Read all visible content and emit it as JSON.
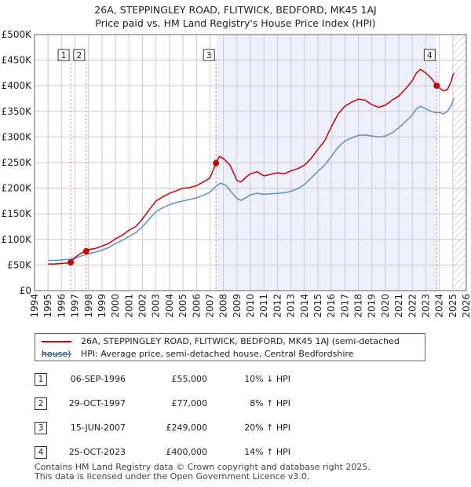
{
  "title_line1": "26A, STEPPINGLEY ROAD, FLITWICK, BEDFORD, MK45 1AJ",
  "title_line2": "Price paid vs. HM Land Registry's House Price Index (HPI)",
  "colors": {
    "price": "#cc0000",
    "hpi": "#5b8fc7",
    "shade": "#eef0fb",
    "grid": "#cccccc"
  },
  "chart_data": {
    "type": "line",
    "title": "26A, STEPPINGLEY ROAD, FLITWICK, BEDFORD, MK45 1AJ — Price paid vs. HM Land Registry's House Price Index (HPI)",
    "xlim": [
      1994,
      2026
    ],
    "ylim": [
      0,
      500000
    ],
    "x_ticks": [
      "1994",
      "1995",
      "1996",
      "1997",
      "1998",
      "1999",
      "2000",
      "2001",
      "2002",
      "2003",
      "2004",
      "2005",
      "2006",
      "2007",
      "2008",
      "2009",
      "2010",
      "2011",
      "2012",
      "2013",
      "2014",
      "2015",
      "2016",
      "2017",
      "2018",
      "2019",
      "2020",
      "2021",
      "2022",
      "2023",
      "2024",
      "2025",
      "2026"
    ],
    "y_ticks": [
      {
        "value": 0,
        "label": "£0"
      },
      {
        "value": 50000,
        "label": "£50K"
      },
      {
        "value": 100000,
        "label": "£100K"
      },
      {
        "value": 150000,
        "label": "£150K"
      },
      {
        "value": 200000,
        "label": "£200K"
      },
      {
        "value": 250000,
        "label": "£250K"
      },
      {
        "value": 300000,
        "label": "£300K"
      },
      {
        "value": 350000,
        "label": "£350K"
      },
      {
        "value": 400000,
        "label": "£400K"
      },
      {
        "value": 450000,
        "label": "£450K"
      },
      {
        "value": 500000,
        "label": "£500K"
      }
    ],
    "shaded_region": [
      2007.45,
      2023.81
    ],
    "hatched_from": 2025.0,
    "series": [
      {
        "name": "26A, STEPPINGLEY ROAD, FLITWICK, BEDFORD, MK45 1AJ (semi-detached house)",
        "color": "#cc0000",
        "x": [
          1995,
          1995.5,
          1996,
          1996.5,
          1996.68,
          1997,
          1997.5,
          1997.83,
          1998,
          1998.5,
          1999,
          1999.5,
          2000,
          2000.5,
          2001,
          2001.5,
          2002,
          2002.5,
          2003,
          2003.5,
          2004,
          2004.5,
          2005,
          2005.5,
          2006,
          2006.5,
          2007,
          2007.45,
          2007.7,
          2008,
          2008.5,
          2009,
          2009.3,
          2009.7,
          2010,
          2010.5,
          2011,
          2011.5,
          2012,
          2012.5,
          2013,
          2013.5,
          2014,
          2014.5,
          2015,
          2015.5,
          2016,
          2016.5,
          2017,
          2017.5,
          2018,
          2018.5,
          2019,
          2019.5,
          2020,
          2020.5,
          2021,
          2021.5,
          2022,
          2022.3,
          2022.6,
          2023,
          2023.4,
          2023.81,
          2024,
          2024.3,
          2024.6,
          2024.9,
          2025.0,
          2025.1
        ],
        "values": [
          52000,
          52000,
          53000,
          54000,
          55000,
          65000,
          74000,
          77000,
          80000,
          82000,
          87000,
          92000,
          101000,
          108000,
          118000,
          125000,
          140000,
          158000,
          175000,
          183000,
          190000,
          195000,
          200000,
          201000,
          205000,
          212000,
          220000,
          249000,
          262000,
          258000,
          245000,
          215000,
          212000,
          222000,
          228000,
          232000,
          224000,
          227000,
          230000,
          228000,
          234000,
          238000,
          245000,
          258000,
          276000,
          292000,
          320000,
          345000,
          360000,
          368000,
          374000,
          372000,
          363000,
          358000,
          362000,
          372000,
          380000,
          394000,
          410000,
          425000,
          432000,
          425000,
          415000,
          400000,
          396000,
          390000,
          392000,
          410000,
          420000,
          425000
        ]
      },
      {
        "name": "HPI: Average price, semi-detached house, Central Bedfordshire",
        "color": "#5b8fc7",
        "x": [
          1995,
          1995.5,
          1996,
          1996.5,
          1997,
          1997.5,
          1998,
          1998.5,
          1999,
          1999.5,
          2000,
          2000.5,
          2001,
          2001.5,
          2002,
          2002.5,
          2003,
          2003.5,
          2004,
          2004.5,
          2005,
          2005.5,
          2006,
          2006.5,
          2007,
          2007.5,
          2007.8,
          2008.2,
          2008.6,
          2009,
          2009.3,
          2009.7,
          2010,
          2010.5,
          2011,
          2011.5,
          2012,
          2012.5,
          2013,
          2013.5,
          2014,
          2014.5,
          2015,
          2015.5,
          2016,
          2016.5,
          2017,
          2017.5,
          2018,
          2018.5,
          2019,
          2019.5,
          2020,
          2020.5,
          2021,
          2021.5,
          2022,
          2022.3,
          2022.6,
          2023,
          2023.4,
          2023.8,
          2024,
          2024.3,
          2024.6,
          2024.9,
          2025.0,
          2025.1
        ],
        "values": [
          59000,
          59000,
          60000,
          61000,
          63000,
          68000,
          72000,
          75000,
          79000,
          84000,
          92000,
          98000,
          106000,
          113000,
          125000,
          140000,
          154000,
          162000,
          168000,
          172000,
          175000,
          178000,
          181000,
          186000,
          192000,
          205000,
          210000,
          205000,
          192000,
          180000,
          176000,
          182000,
          187000,
          190000,
          188000,
          189000,
          190000,
          191000,
          194000,
          199000,
          207000,
          220000,
          233000,
          245000,
          262000,
          280000,
          292000,
          298000,
          303000,
          304000,
          302000,
          300000,
          302000,
          308000,
          318000,
          330000,
          343000,
          355000,
          360000,
          355000,
          350000,
          347000,
          348000,
          345000,
          350000,
          362000,
          370000,
          375000
        ]
      }
    ],
    "markers": [
      {
        "label": "1",
        "x": 1996.68,
        "y": 55000
      },
      {
        "label": "2",
        "x": 1997.83,
        "y": 77000
      },
      {
        "label": "3",
        "x": 2007.45,
        "y": 249000
      },
      {
        "label": "4",
        "x": 2023.81,
        "y": 400000
      }
    ]
  },
  "legend": {
    "price_label": "26A, STEPPINGLEY ROAD, FLITWICK, BEDFORD, MK45 1AJ (semi-detached house)",
    "hpi_label": "HPI: Average price, semi-detached house, Central Bedfordshire"
  },
  "sales": [
    {
      "num": "1",
      "date": "06-SEP-1996",
      "price": "£55,000",
      "hpi": "10% ↓ HPI"
    },
    {
      "num": "2",
      "date": "29-OCT-1997",
      "price": "£77,000",
      "hpi": "8% ↑ HPI"
    },
    {
      "num": "3",
      "date": "15-JUN-2007",
      "price": "£249,000",
      "hpi": "20% ↑ HPI"
    },
    {
      "num": "4",
      "date": "25-OCT-2023",
      "price": "£400,000",
      "hpi": "14% ↑ HPI"
    }
  ],
  "footer_line1": "Contains HM Land Registry data © Crown copyright and database right 2025.",
  "footer_line2": "This data is licensed under the Open Government Licence v3.0."
}
